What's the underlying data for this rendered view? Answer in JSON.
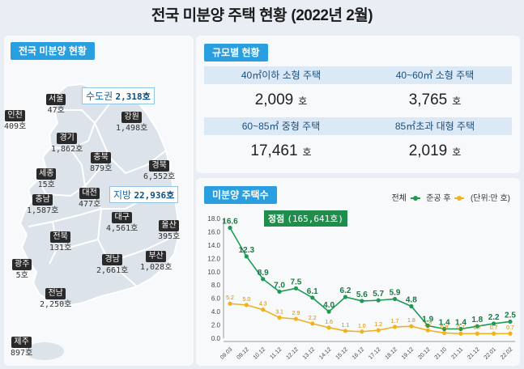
{
  "title": "전국 미분양 주택 현황",
  "title_period": "(2022년 2월)",
  "left": {
    "header": "전국 미분양 현황",
    "callouts": {
      "capital": {
        "name": "수도권",
        "value": "2,318호"
      },
      "provinces": {
        "name": "지방",
        "value": "22,936호"
      }
    },
    "regions": [
      {
        "name": "인천",
        "value": "409",
        "unit": "호"
      },
      {
        "name": "서울",
        "value": "47",
        "unit": "호"
      },
      {
        "name": "강원",
        "value": "1,498",
        "unit": "호"
      },
      {
        "name": "경기",
        "value": "1,862",
        "unit": "호"
      },
      {
        "name": "충북",
        "value": "879",
        "unit": "호"
      },
      {
        "name": "경북",
        "value": "6,552",
        "unit": "호"
      },
      {
        "name": "세종",
        "value": "15",
        "unit": "호"
      },
      {
        "name": "대전",
        "value": "477",
        "unit": "호"
      },
      {
        "name": "충남",
        "value": "1,587",
        "unit": "호"
      },
      {
        "name": "대구",
        "value": "4,561",
        "unit": "호"
      },
      {
        "name": "울산",
        "value": "395",
        "unit": "호"
      },
      {
        "name": "전북",
        "value": "131",
        "unit": "호"
      },
      {
        "name": "경남",
        "value": "2,661",
        "unit": "호"
      },
      {
        "name": "부산",
        "value": "1,028",
        "unit": "호"
      },
      {
        "name": "광주",
        "value": "5",
        "unit": "호"
      },
      {
        "name": "전남",
        "value": "2,250",
        "unit": "호"
      },
      {
        "name": "제주",
        "value": "897",
        "unit": "호"
      }
    ]
  },
  "size": {
    "header": "규모별 현황",
    "cells": [
      {
        "label": "40㎡이하 소형 주택",
        "value": "2,009",
        "unit": "호"
      },
      {
        "label": "40~60㎡ 소형 주택",
        "value": "3,765",
        "unit": "호"
      },
      {
        "label": "60~85㎡ 중형 주택",
        "value": "17,461",
        "unit": "호"
      },
      {
        "label": "85㎡초과 대형 주택",
        "value": "2,019",
        "unit": "호"
      }
    ]
  },
  "chart": {
    "header": "미분양 주택수",
    "legend_total": "전체",
    "legend_completed": "준공 후",
    "unit_note": "(단위:만 호)",
    "peak_label": "정점",
    "peak_value": "(165,641호)",
    "colors": {
      "total": "#1f9a55",
      "completed": "#f0b21e"
    }
  },
  "chart_data": {
    "type": "line",
    "x": [
      "09.03",
      "09.12",
      "10.12",
      "11.12",
      "12.12",
      "13.12",
      "14.12",
      "15.12",
      "16.12",
      "17.12",
      "18.12",
      "19.12",
      "20.12",
      "21.10",
      "21.11",
      "21.12",
      "22.01",
      "22.02"
    ],
    "series": [
      {
        "name": "전체",
        "values": [
          16.6,
          12.3,
          8.9,
          7.0,
          7.5,
          6.1,
          4.0,
          6.2,
          5.6,
          5.7,
          5.9,
          4.8,
          1.9,
          1.4,
          1.4,
          1.8,
          2.2,
          2.5
        ]
      },
      {
        "name": "준공 후",
        "values": [
          5.2,
          5.0,
          4.3,
          3.1,
          2.9,
          2.2,
          1.6,
          1.1,
          1.0,
          1.2,
          1.7,
          1.8,
          1.2,
          0.8,
          0.7,
          0.7,
          0.7,
          0.7
        ]
      }
    ],
    "y_ticks": [
      "0.0",
      "2.0",
      "4.0",
      "6.0",
      "8.0",
      "10.0",
      "12.0",
      "14.0",
      "16.0",
      "18.0"
    ],
    "ylim": [
      0,
      18
    ],
    "grid": false
  }
}
